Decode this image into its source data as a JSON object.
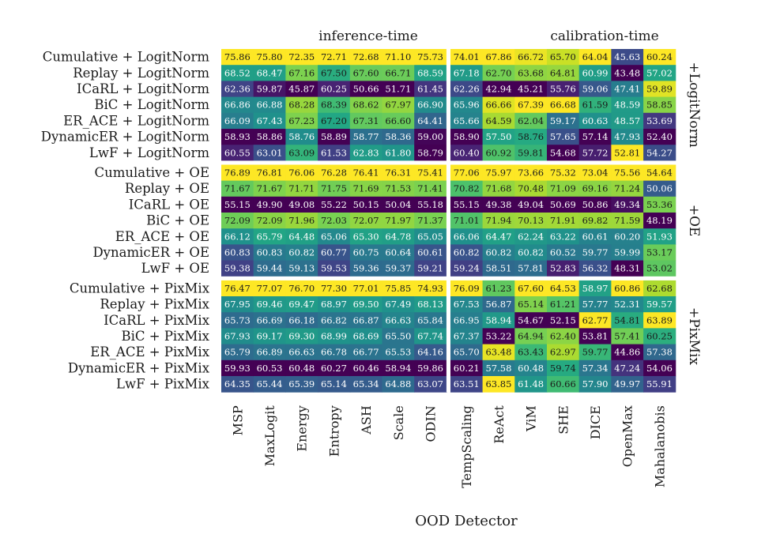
{
  "chart_data": {
    "type": "heatmap",
    "xlabel": "OOD Detector",
    "group_headers": [
      "inference-time",
      "calibration-time"
    ],
    "columns": [
      "MSP",
      "MaxLogit",
      "Energy",
      "Entropy",
      "ASH",
      "Scale",
      "ODIN",
      "TempScaling",
      "ReAct",
      "ViM",
      "SHE",
      "DICE",
      "OpenMax",
      "Mahalanobis"
    ],
    "row_groups": [
      "+LogitNorm",
      "+OE",
      "+PixMix"
    ],
    "rows": [
      "Cumulative + LogitNorm",
      "Replay + LogitNorm",
      "ICaRL + LogitNorm",
      "BiC + LogitNorm",
      "ER_ACE + LogitNorm",
      "DynamicER + LogitNorm",
      "LwF + LogitNorm",
      "Cumulative + OE",
      "Replay + OE",
      "ICaRL + OE",
      "BiC + OE",
      "ER_ACE + OE",
      "DynamicER + OE",
      "LwF + OE",
      "Cumulative + PixMix",
      "Replay + PixMix",
      "ICaRL + PixMix",
      "BiC + PixMix",
      "ER_ACE + PixMix",
      "DynamicER + PixMix",
      "LwF + PixMix"
    ],
    "values": [
      [
        "75.86",
        "75.80",
        "72.35",
        "72.71",
        "72.68",
        "71.10",
        "75.73",
        "74.01",
        "67.86",
        "66.72",
        "65.70",
        "64.04",
        "45.63",
        "60.24"
      ],
      [
        "68.52",
        "68.47",
        "67.16",
        "67.50",
        "67.60",
        "66.71",
        "68.59",
        "67.18",
        "62.70",
        "63.68",
        "64.81",
        "60.99",
        "43.48",
        "57.02"
      ],
      [
        "62.36",
        "59.87",
        "45.87",
        "60.25",
        "50.66",
        "51.71",
        "61.45",
        "62.26",
        "42.94",
        "45.21",
        "55.76",
        "59.06",
        "47.41",
        "59.89"
      ],
      [
        "66.86",
        "66.88",
        "68.28",
        "68.39",
        "68.62",
        "67.97",
        "66.90",
        "65.96",
        "66.66",
        "67.39",
        "66.68",
        "61.59",
        "48.59",
        "58.85"
      ],
      [
        "66.09",
        "67.43",
        "67.23",
        "67.20",
        "67.31",
        "66.60",
        "64.41",
        "65.66",
        "64.59",
        "62.04",
        "59.17",
        "60.63",
        "48.57",
        "53.69"
      ],
      [
        "58.93",
        "58.86",
        "58.76",
        "58.89",
        "58.77",
        "58.36",
        "59.00",
        "58.90",
        "57.50",
        "58.76",
        "57.65",
        "57.14",
        "47.93",
        "52.40"
      ],
      [
        "60.55",
        "63.01",
        "63.09",
        "61.53",
        "62.83",
        "61.80",
        "58.79",
        "60.40",
        "60.92",
        "59.81",
        "54.68",
        "57.72",
        "52.81",
        "54.27"
      ],
      [
        "76.89",
        "76.81",
        "76.06",
        "76.28",
        "76.41",
        "76.31",
        "75.41",
        "77.06",
        "75.97",
        "73.66",
        "75.32",
        "73.04",
        "75.56",
        "54.64"
      ],
      [
        "71.67",
        "71.67",
        "71.71",
        "71.75",
        "71.69",
        "71.53",
        "71.41",
        "70.82",
        "71.68",
        "70.48",
        "71.09",
        "69.16",
        "71.24",
        "50.06"
      ],
      [
        "55.15",
        "49.90",
        "49.08",
        "55.22",
        "50.15",
        "50.04",
        "55.18",
        "55.15",
        "49.38",
        "49.04",
        "50.69",
        "50.86",
        "49.34",
        "53.36"
      ],
      [
        "72.09",
        "72.09",
        "71.96",
        "72.03",
        "72.07",
        "71.97",
        "71.37",
        "71.01",
        "71.94",
        "70.13",
        "71.91",
        "69.82",
        "71.59",
        "48.19"
      ],
      [
        "66.12",
        "65.79",
        "64.48",
        "65.06",
        "65.30",
        "64.78",
        "65.05",
        "66.06",
        "64.47",
        "62.24",
        "63.22",
        "60.61",
        "60.20",
        "51.93"
      ],
      [
        "60.83",
        "60.83",
        "60.82",
        "60.77",
        "60.75",
        "60.64",
        "60.61",
        "60.82",
        "60.82",
        "60.82",
        "60.52",
        "59.77",
        "59.99",
        "53.17"
      ],
      [
        "59.38",
        "59.44",
        "59.13",
        "59.53",
        "59.36",
        "59.37",
        "59.21",
        "59.24",
        "58.51",
        "57.81",
        "52.83",
        "56.32",
        "48.31",
        "53.02"
      ],
      [
        "76.47",
        "77.07",
        "76.70",
        "77.30",
        "77.01",
        "75.85",
        "74.93",
        "76.09",
        "61.23",
        "67.60",
        "64.53",
        "58.97",
        "60.86",
        "62.68"
      ],
      [
        "67.95",
        "69.46",
        "69.47",
        "68.97",
        "69.50",
        "67.49",
        "68.13",
        "67.53",
        "56.87",
        "65.14",
        "61.21",
        "57.77",
        "52.31",
        "59.57"
      ],
      [
        "65.73",
        "66.69",
        "66.18",
        "66.82",
        "66.87",
        "66.63",
        "65.84",
        "66.95",
        "58.94",
        "54.67",
        "52.15",
        "62.77",
        "54.81",
        "63.89"
      ],
      [
        "67.93",
        "69.17",
        "69.30",
        "68.99",
        "68.69",
        "65.50",
        "67.74",
        "67.37",
        "53.22",
        "64.94",
        "62.40",
        "53.81",
        "57.41",
        "60.25"
      ],
      [
        "65.79",
        "66.89",
        "66.63",
        "66.78",
        "66.77",
        "65.53",
        "64.16",
        "65.70",
        "63.48",
        "63.43",
        "62.97",
        "59.77",
        "44.86",
        "57.38"
      ],
      [
        "59.93",
        "60.53",
        "60.48",
        "60.27",
        "60.46",
        "58.94",
        "59.86",
        "60.21",
        "57.58",
        "60.48",
        "59.74",
        "57.34",
        "47.24",
        "54.06"
      ],
      [
        "64.35",
        "65.44",
        "65.39",
        "65.14",
        "65.34",
        "64.88",
        "63.07",
        "63.51",
        "63.85",
        "61.48",
        "60.66",
        "57.90",
        "49.97",
        "55.91"
      ]
    ]
  }
}
